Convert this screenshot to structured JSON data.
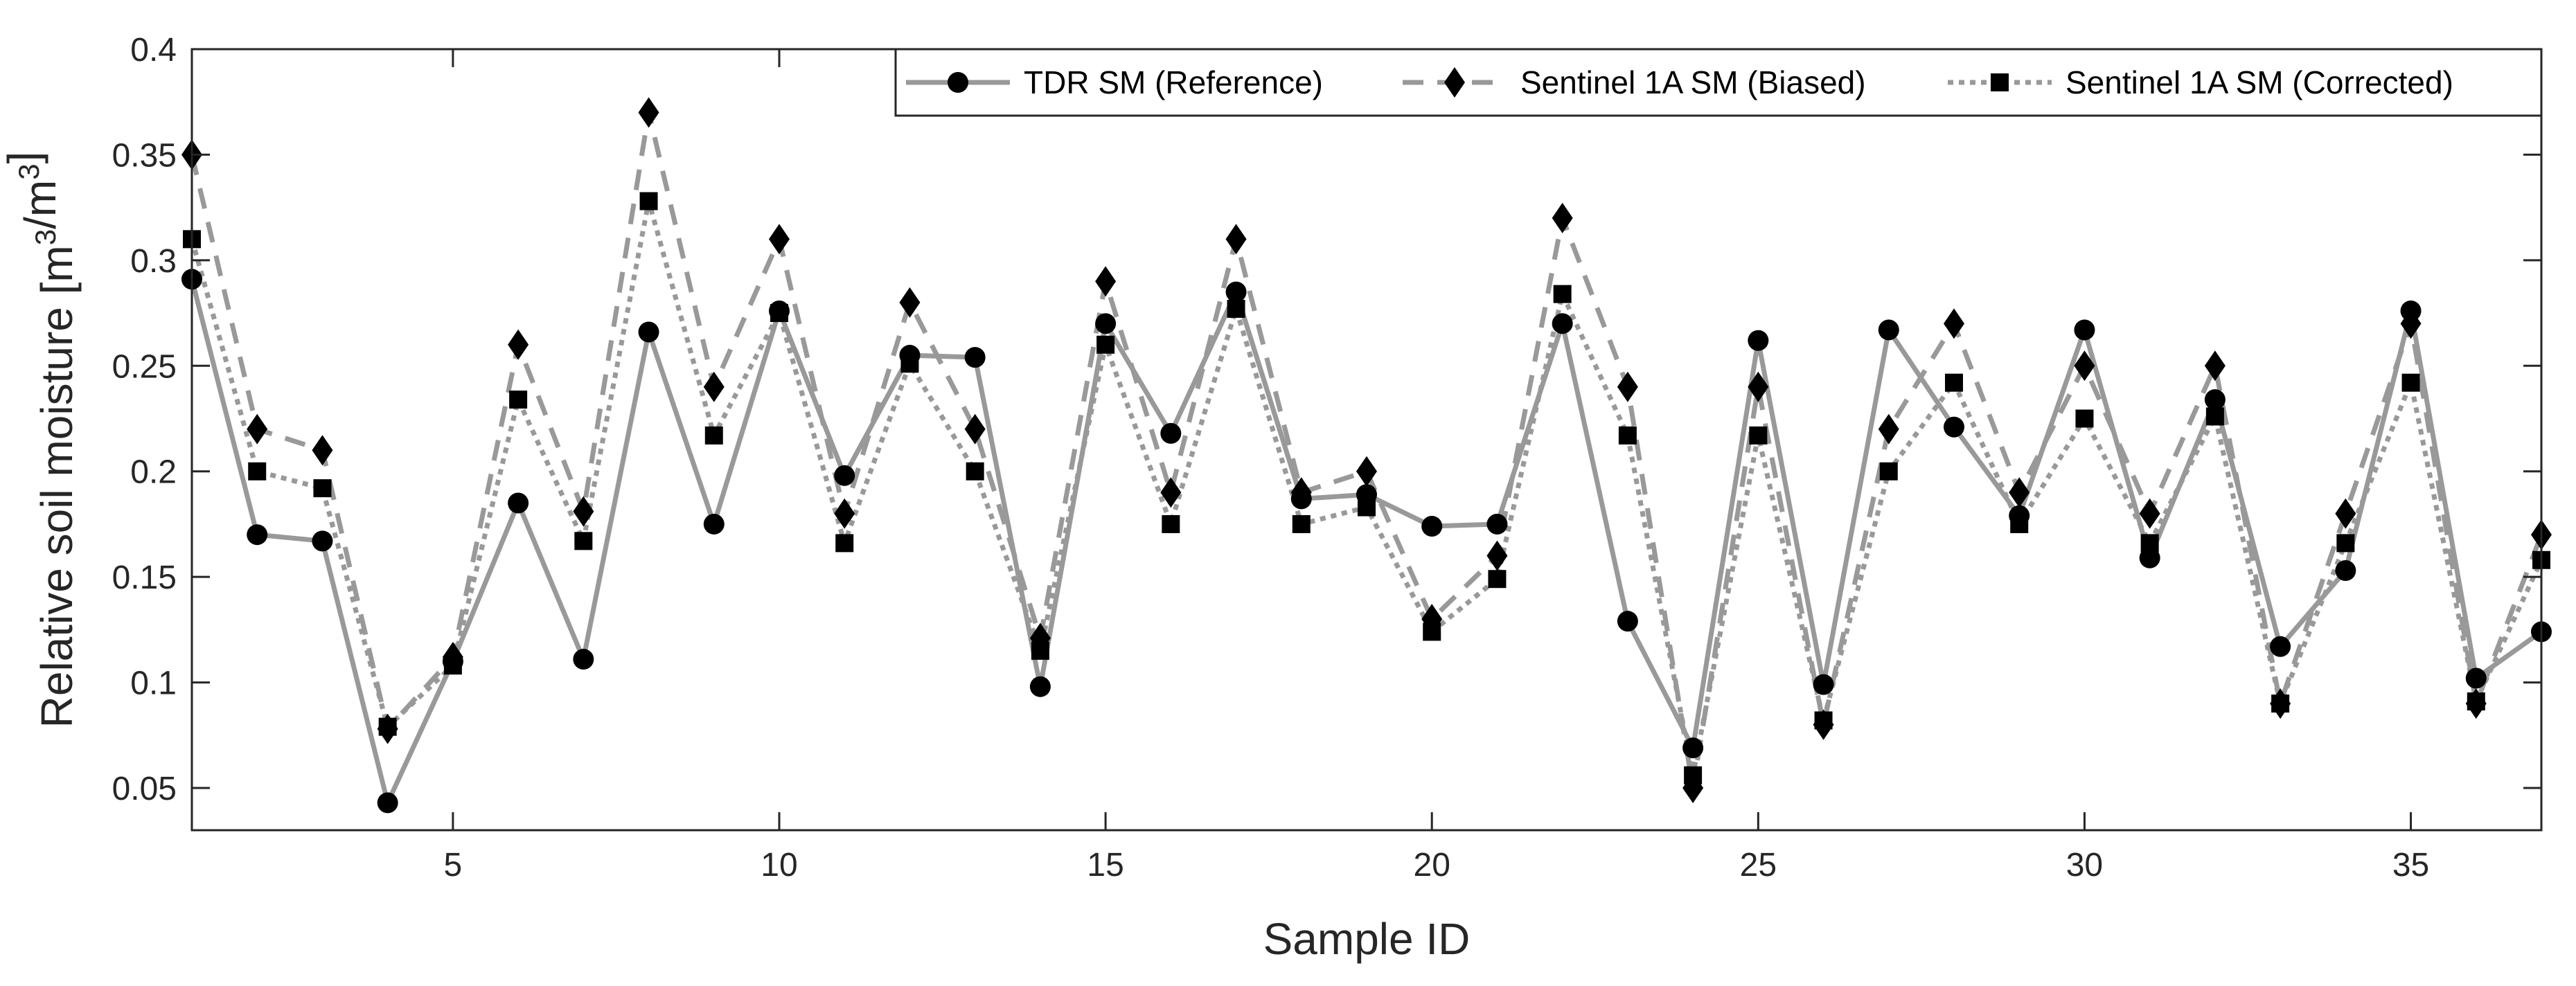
{
  "chart_data": {
    "type": "line",
    "title": "",
    "xlabel": "Sample ID",
    "ylabel_main": "Relative soil moisture [m",
    "ylabel_sup1": "3",
    "ylabel_mid": "/m",
    "ylabel_sup2": "3",
    "ylabel_end": "]",
    "xlim": [
      1,
      37
    ],
    "ylim": [
      0.03,
      0.4
    ],
    "xticks": [
      5,
      10,
      15,
      20,
      25,
      30,
      35
    ],
    "xtick_labels": [
      "5",
      "10",
      "15",
      "20",
      "25",
      "30",
      "35"
    ],
    "yticks": [
      0.05,
      0.1,
      0.15,
      0.2,
      0.25,
      0.3,
      0.35,
      0.4
    ],
    "ytick_labels": [
      "0.05",
      "0.1",
      "0.15",
      "0.2",
      "0.25",
      "0.3",
      "0.35",
      "0.4"
    ],
    "grid": false,
    "legend_position": "top-right",
    "x": [
      1,
      2,
      3,
      4,
      5,
      6,
      7,
      8,
      9,
      10,
      11,
      12,
      13,
      14,
      15,
      16,
      17,
      18,
      19,
      20,
      21,
      22,
      23,
      24,
      25,
      26,
      27,
      28,
      29,
      30,
      31,
      32,
      33,
      34,
      35,
      36,
      37
    ],
    "series": [
      {
        "name": "TDR SM (Reference)",
        "marker": "circle",
        "line_style": "solid",
        "color": "#999999",
        "marker_color": "#000000",
        "values": [
          0.291,
          0.17,
          0.167,
          0.043,
          0.11,
          0.185,
          0.111,
          0.266,
          0.175,
          0.276,
          0.198,
          0.255,
          0.254,
          0.098,
          0.27,
          0.218,
          0.285,
          0.187,
          0.189,
          0.174,
          0.175,
          0.27,
          0.129,
          0.069,
          0.262,
          0.099,
          0.267,
          0.221,
          0.179,
          0.267,
          0.159,
          0.234,
          0.117,
          0.153,
          0.276,
          0.102,
          0.124
        ]
      },
      {
        "name": "Sentinel 1A SM (Biased)",
        "marker": "diamond",
        "line_style": "dashed",
        "color": "#999999",
        "marker_color": "#000000",
        "values": [
          0.35,
          0.22,
          0.21,
          0.078,
          0.112,
          0.26,
          0.181,
          0.37,
          0.24,
          0.31,
          0.18,
          0.28,
          0.22,
          0.121,
          0.29,
          0.19,
          0.31,
          0.19,
          0.2,
          0.13,
          0.16,
          0.32,
          0.24,
          0.05,
          0.24,
          0.08,
          0.22,
          0.27,
          0.19,
          0.25,
          0.18,
          0.25,
          0.09,
          0.18,
          0.27,
          0.09,
          0.17
        ]
      },
      {
        "name": "Sentinel 1A SM (Corrected)",
        "marker": "square",
        "line_style": "dotted",
        "color": "#999999",
        "marker_color": "#000000",
        "values": [
          0.31,
          0.2,
          0.192,
          0.079,
          0.108,
          0.234,
          0.167,
          0.328,
          0.217,
          0.275,
          0.166,
          0.251,
          0.2,
          0.115,
          0.26,
          0.175,
          0.277,
          0.175,
          0.183,
          0.124,
          0.149,
          0.284,
          0.217,
          0.056,
          0.217,
          0.082,
          0.2,
          0.242,
          0.175,
          0.225,
          0.166,
          0.226,
          0.09,
          0.166,
          0.242,
          0.091,
          0.158
        ]
      }
    ]
  }
}
